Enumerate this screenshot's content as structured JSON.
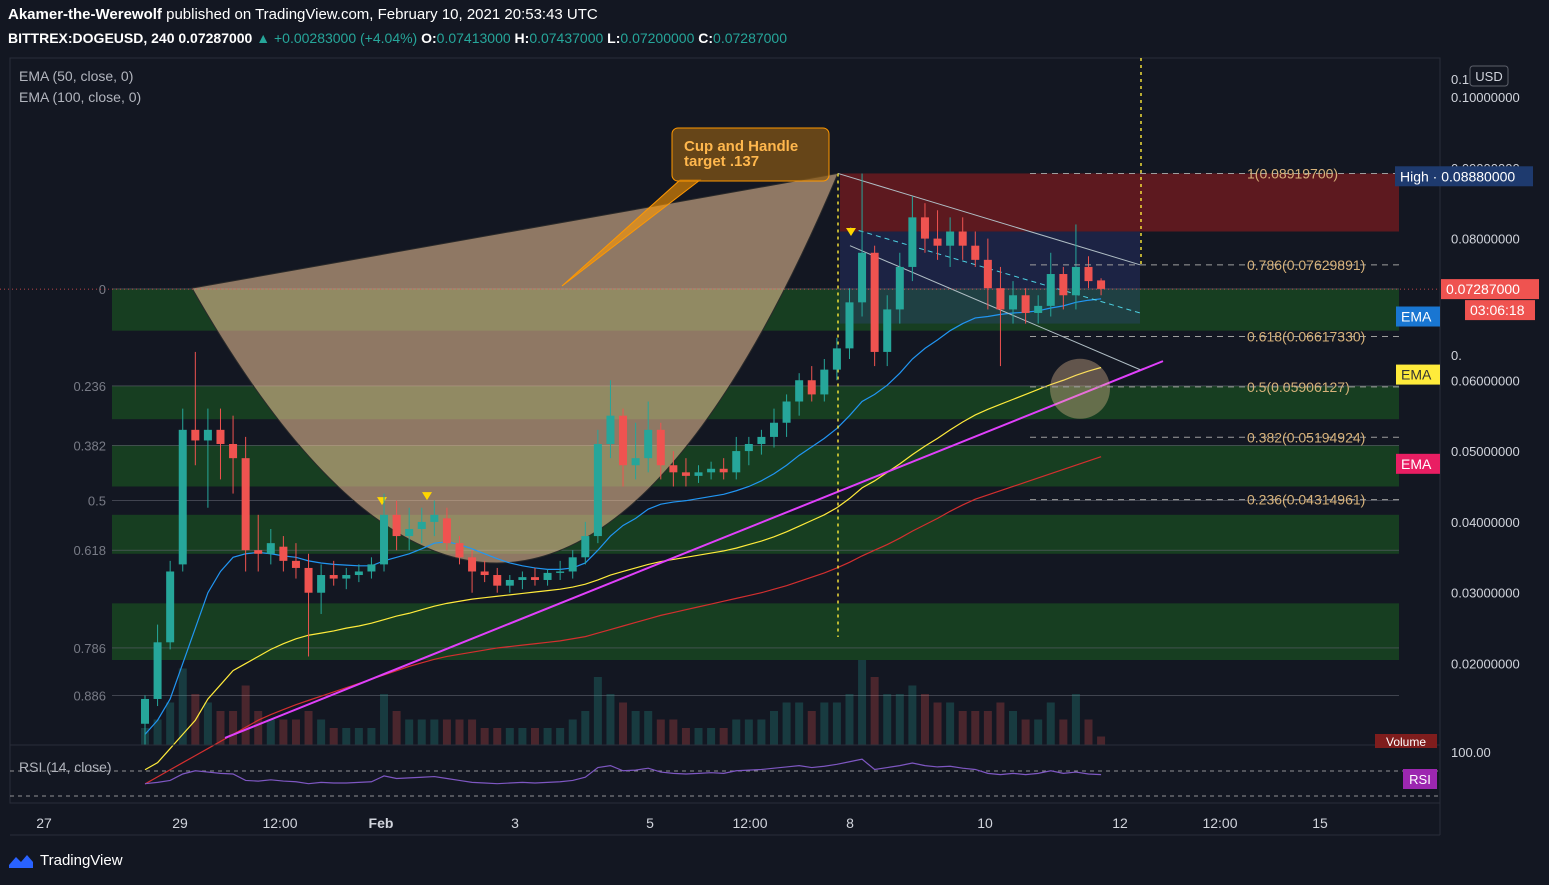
{
  "header": {
    "author": "Akamer-the-Werewolf",
    "published": "published on TradingView.com, February 10, 2021 20:53:43 UTC",
    "symbol": "BITTREX:DOGEUSD, 240",
    "last": "0.07287000",
    "change": "+0.00283000 (+4.04%)",
    "o_label": "O:",
    "o": "0.07413000",
    "h_label": "H:",
    "h": "0.07437000",
    "l_label": "L:",
    "l": "0.07200000",
    "c_label": "C:",
    "c": "0.07287000"
  },
  "indicators": {
    "ema50": "EMA (50, close, 0)",
    "ema100": "EMA (100, close, 0)",
    "rsi": "RSI (14, close)",
    "volume_tag": "Volume",
    "rsi_tag": "RSI",
    "rsi_level": "100.00"
  },
  "footer": {
    "brand": "TradingView"
  },
  "annotation": {
    "line1": "Cup and Handle",
    "line2": "target .137"
  },
  "colors": {
    "bg": "#131722",
    "up": "#26a69a",
    "down": "#ef5350",
    "ema_blue": "#2196f3",
    "ema_yellow": "#ffeb3b",
    "ema_red": "#e91e63",
    "trend": "#e040fb",
    "zone": "#1b5e20",
    "rsi": "#7e57c2"
  },
  "chart_data": {
    "type": "candlestick",
    "currency": "USD",
    "y_axis_ticks": [
      "0.10000000",
      "0.09000000",
      "0.08000000",
      "0.06000000",
      "0.05000000",
      "0.04000000",
      "0.03000000",
      "0.02000000"
    ],
    "y_axis_partial": [
      "0.1",
      "0."
    ],
    "x_axis_ticks": [
      "27",
      "29",
      "12:00",
      "Feb",
      "3",
      "5",
      "12:00",
      "8",
      "10",
      "12",
      "12:00",
      "15"
    ],
    "price_labels": {
      "high": "High  ·  0.08880000",
      "last": "0.07287000",
      "countdown": "03:06:18",
      "ema": "EMA"
    },
    "fib_right": [
      {
        "level": "1",
        "value": "1(0.08919700)",
        "price": 0.089197
      },
      {
        "level": "0.786",
        "value": "0.786(0.07629891)",
        "price": 0.07629891
      },
      {
        "level": "0.618",
        "value": "0.618(0.06617330)",
        "price": 0.0661733
      },
      {
        "level": "0.5",
        "value": "0.5(0.05906127)",
        "price": 0.05906127
      },
      {
        "level": "0.382",
        "value": "0.382(0.05194924)",
        "price": 0.05194924
      },
      {
        "level": "0.236",
        "value": "0.236(0.04314961)",
        "price": 0.04314961
      }
    ],
    "fib_left": [
      {
        "label": "0",
        "price": 0.0729
      },
      {
        "label": "0.236",
        "price": 0.0592
      },
      {
        "label": "0.382",
        "price": 0.0508
      },
      {
        "label": "0.5",
        "price": 0.043
      },
      {
        "label": "0.618",
        "price": 0.036
      },
      {
        "label": "0.786",
        "price": 0.0222
      },
      {
        "label": "0.886",
        "price": 0.0155
      }
    ],
    "y_range": [
      0.0085,
      0.1055
    ],
    "candles": [
      {
        "t": 0,
        "o": 0.0115,
        "h": 0.0155,
        "l": 0.0085,
        "c": 0.015
      },
      {
        "t": 1,
        "o": 0.015,
        "h": 0.0255,
        "l": 0.014,
        "c": 0.023
      },
      {
        "t": 2,
        "o": 0.023,
        "h": 0.0345,
        "l": 0.022,
        "c": 0.033
      },
      {
        "t": 3,
        "o": 0.034,
        "h": 0.056,
        "l": 0.033,
        "c": 0.053
      },
      {
        "t": 4,
        "o": 0.053,
        "h": 0.064,
        "l": 0.048,
        "c": 0.0515
      },
      {
        "t": 5,
        "o": 0.0515,
        "h": 0.056,
        "l": 0.042,
        "c": 0.053
      },
      {
        "t": 6,
        "o": 0.053,
        "h": 0.056,
        "l": 0.046,
        "c": 0.051
      },
      {
        "t": 7,
        "o": 0.051,
        "h": 0.055,
        "l": 0.044,
        "c": 0.049
      },
      {
        "t": 8,
        "o": 0.049,
        "h": 0.052,
        "l": 0.033,
        "c": 0.036
      },
      {
        "t": 9,
        "o": 0.036,
        "h": 0.041,
        "l": 0.033,
        "c": 0.0355
      },
      {
        "t": 10,
        "o": 0.0355,
        "h": 0.039,
        "l": 0.034,
        "c": 0.037
      },
      {
        "t": 11,
        "o": 0.0365,
        "h": 0.038,
        "l": 0.033,
        "c": 0.0345
      },
      {
        "t": 12,
        "o": 0.0345,
        "h": 0.037,
        "l": 0.032,
        "c": 0.0335
      },
      {
        "t": 13,
        "o": 0.0335,
        "h": 0.0355,
        "l": 0.021,
        "c": 0.03
      },
      {
        "t": 14,
        "o": 0.03,
        "h": 0.034,
        "l": 0.027,
        "c": 0.0325
      },
      {
        "t": 15,
        "o": 0.0325,
        "h": 0.0345,
        "l": 0.031,
        "c": 0.032
      },
      {
        "t": 16,
        "o": 0.032,
        "h": 0.0335,
        "l": 0.0305,
        "c": 0.0325
      },
      {
        "t": 17,
        "o": 0.0325,
        "h": 0.034,
        "l": 0.0315,
        "c": 0.033
      },
      {
        "t": 18,
        "o": 0.033,
        "h": 0.035,
        "l": 0.032,
        "c": 0.034
      },
      {
        "t": 19,
        "o": 0.034,
        "h": 0.044,
        "l": 0.033,
        "c": 0.041
      },
      {
        "t": 20,
        "o": 0.041,
        "h": 0.043,
        "l": 0.036,
        "c": 0.038
      },
      {
        "t": 21,
        "o": 0.038,
        "h": 0.042,
        "l": 0.036,
        "c": 0.039
      },
      {
        "t": 22,
        "o": 0.039,
        "h": 0.042,
        "l": 0.037,
        "c": 0.04
      },
      {
        "t": 23,
        "o": 0.04,
        "h": 0.043,
        "l": 0.038,
        "c": 0.041
      },
      {
        "t": 24,
        "o": 0.0405,
        "h": 0.042,
        "l": 0.036,
        "c": 0.037
      },
      {
        "t": 25,
        "o": 0.037,
        "h": 0.038,
        "l": 0.034,
        "c": 0.035
      },
      {
        "t": 26,
        "o": 0.035,
        "h": 0.036,
        "l": 0.03,
        "c": 0.033
      },
      {
        "t": 27,
        "o": 0.033,
        "h": 0.0345,
        "l": 0.0315,
        "c": 0.0325
      },
      {
        "t": 28,
        "o": 0.0325,
        "h": 0.0335,
        "l": 0.03,
        "c": 0.031
      },
      {
        "t": 29,
        "o": 0.031,
        "h": 0.0325,
        "l": 0.03,
        "c": 0.0318
      },
      {
        "t": 30,
        "o": 0.0318,
        "h": 0.033,
        "l": 0.0305,
        "c": 0.0322
      },
      {
        "t": 31,
        "o": 0.0322,
        "h": 0.0335,
        "l": 0.031,
        "c": 0.0318
      },
      {
        "t": 32,
        "o": 0.0318,
        "h": 0.0333,
        "l": 0.031,
        "c": 0.0328
      },
      {
        "t": 33,
        "o": 0.0328,
        "h": 0.0345,
        "l": 0.0318,
        "c": 0.033
      },
      {
        "t": 34,
        "o": 0.033,
        "h": 0.036,
        "l": 0.032,
        "c": 0.035
      },
      {
        "t": 35,
        "o": 0.035,
        "h": 0.04,
        "l": 0.034,
        "c": 0.038
      },
      {
        "t": 36,
        "o": 0.038,
        "h": 0.053,
        "l": 0.037,
        "c": 0.051
      },
      {
        "t": 37,
        "o": 0.051,
        "h": 0.06,
        "l": 0.049,
        "c": 0.055
      },
      {
        "t": 38,
        "o": 0.055,
        "h": 0.056,
        "l": 0.045,
        "c": 0.048
      },
      {
        "t": 39,
        "o": 0.048,
        "h": 0.054,
        "l": 0.046,
        "c": 0.049
      },
      {
        "t": 40,
        "o": 0.049,
        "h": 0.057,
        "l": 0.047,
        "c": 0.053
      },
      {
        "t": 41,
        "o": 0.053,
        "h": 0.054,
        "l": 0.046,
        "c": 0.048
      },
      {
        "t": 42,
        "o": 0.048,
        "h": 0.05,
        "l": 0.045,
        "c": 0.047
      },
      {
        "t": 43,
        "o": 0.047,
        "h": 0.049,
        "l": 0.045,
        "c": 0.0465
      },
      {
        "t": 44,
        "o": 0.0465,
        "h": 0.048,
        "l": 0.0455,
        "c": 0.047
      },
      {
        "t": 45,
        "o": 0.047,
        "h": 0.0485,
        "l": 0.046,
        "c": 0.0475
      },
      {
        "t": 46,
        "o": 0.0475,
        "h": 0.049,
        "l": 0.046,
        "c": 0.047
      },
      {
        "t": 47,
        "o": 0.047,
        "h": 0.052,
        "l": 0.046,
        "c": 0.05
      },
      {
        "t": 48,
        "o": 0.05,
        "h": 0.052,
        "l": 0.048,
        "c": 0.051
      },
      {
        "t": 49,
        "o": 0.051,
        "h": 0.053,
        "l": 0.0495,
        "c": 0.052
      },
      {
        "t": 50,
        "o": 0.052,
        "h": 0.056,
        "l": 0.0505,
        "c": 0.054
      },
      {
        "t": 51,
        "o": 0.054,
        "h": 0.058,
        "l": 0.052,
        "c": 0.057
      },
      {
        "t": 52,
        "o": 0.057,
        "h": 0.061,
        "l": 0.055,
        "c": 0.06
      },
      {
        "t": 53,
        "o": 0.06,
        "h": 0.062,
        "l": 0.057,
        "c": 0.058
      },
      {
        "t": 54,
        "o": 0.058,
        "h": 0.063,
        "l": 0.057,
        "c": 0.0615
      },
      {
        "t": 55,
        "o": 0.0615,
        "h": 0.066,
        "l": 0.06,
        "c": 0.0645
      },
      {
        "t": 56,
        "o": 0.0645,
        "h": 0.073,
        "l": 0.063,
        "c": 0.071
      },
      {
        "t": 57,
        "o": 0.071,
        "h": 0.0892,
        "l": 0.069,
        "c": 0.078
      },
      {
        "t": 58,
        "o": 0.078,
        "h": 0.079,
        "l": 0.062,
        "c": 0.064
      },
      {
        "t": 59,
        "o": 0.064,
        "h": 0.072,
        "l": 0.062,
        "c": 0.07
      },
      {
        "t": 60,
        "o": 0.07,
        "h": 0.078,
        "l": 0.068,
        "c": 0.076
      },
      {
        "t": 61,
        "o": 0.076,
        "h": 0.086,
        "l": 0.074,
        "c": 0.083
      },
      {
        "t": 62,
        "o": 0.083,
        "h": 0.085,
        "l": 0.078,
        "c": 0.08
      },
      {
        "t": 63,
        "o": 0.08,
        "h": 0.084,
        "l": 0.077,
        "c": 0.079
      },
      {
        "t": 64,
        "o": 0.079,
        "h": 0.083,
        "l": 0.076,
        "c": 0.081
      },
      {
        "t": 65,
        "o": 0.081,
        "h": 0.083,
        "l": 0.077,
        "c": 0.079
      },
      {
        "t": 66,
        "o": 0.079,
        "h": 0.081,
        "l": 0.076,
        "c": 0.077
      },
      {
        "t": 67,
        "o": 0.077,
        "h": 0.08,
        "l": 0.07,
        "c": 0.073
      },
      {
        "t": 68,
        "o": 0.073,
        "h": 0.076,
        "l": 0.062,
        "c": 0.07
      },
      {
        "t": 69,
        "o": 0.07,
        "h": 0.074,
        "l": 0.068,
        "c": 0.072
      },
      {
        "t": 70,
        "o": 0.072,
        "h": 0.073,
        "l": 0.068,
        "c": 0.0695
      },
      {
        "t": 71,
        "o": 0.0695,
        "h": 0.072,
        "l": 0.068,
        "c": 0.0705
      },
      {
        "t": 72,
        "o": 0.0705,
        "h": 0.078,
        "l": 0.069,
        "c": 0.075
      },
      {
        "t": 73,
        "o": 0.075,
        "h": 0.076,
        "l": 0.07,
        "c": 0.072
      },
      {
        "t": 74,
        "o": 0.072,
        "h": 0.082,
        "l": 0.07,
        "c": 0.076
      },
      {
        "t": 75,
        "o": 0.076,
        "h": 0.0775,
        "l": 0.073,
        "c": 0.074
      },
      {
        "t": 76,
        "o": 0.0741,
        "h": 0.0744,
        "l": 0.072,
        "c": 0.0729
      }
    ],
    "ema20": [
      0.01,
      0.012,
      0.015,
      0.02,
      0.025,
      0.03,
      0.033,
      0.035,
      0.0355,
      0.0357,
      0.0355,
      0.0352,
      0.035,
      0.0345,
      0.0342,
      0.034,
      0.0339,
      0.0338,
      0.0338,
      0.0345,
      0.035,
      0.0355,
      0.0362,
      0.037,
      0.0372,
      0.0368,
      0.0362,
      0.0355,
      0.0348,
      0.0342,
      0.0338,
      0.0335,
      0.0333,
      0.0333,
      0.0335,
      0.0342,
      0.036,
      0.038,
      0.0395,
      0.0405,
      0.0418,
      0.0425,
      0.0428,
      0.043,
      0.0433,
      0.0436,
      0.0439,
      0.0444,
      0.045,
      0.0458,
      0.0468,
      0.048,
      0.0494,
      0.0506,
      0.0518,
      0.0532,
      0.055,
      0.057,
      0.058,
      0.0593,
      0.061,
      0.063,
      0.0645,
      0.0657,
      0.067,
      0.068,
      0.0688,
      0.069,
      0.0693,
      0.0695,
      0.0696,
      0.0698,
      0.0702,
      0.0705,
      0.071,
      0.0713,
      0.0715
    ],
    "ema50": [
      0.005,
      0.006,
      0.008,
      0.01,
      0.012,
      0.015,
      0.017,
      0.019,
      0.02,
      0.021,
      0.022,
      0.0228,
      0.0235,
      0.024,
      0.0243,
      0.0246,
      0.025,
      0.0253,
      0.0257,
      0.0262,
      0.0267,
      0.0271,
      0.0276,
      0.0281,
      0.0285,
      0.0288,
      0.0291,
      0.0293,
      0.0295,
      0.0297,
      0.0299,
      0.0301,
      0.0303,
      0.0305,
      0.0308,
      0.0312,
      0.0318,
      0.0325,
      0.033,
      0.0335,
      0.034,
      0.0344,
      0.0347,
      0.035,
      0.0353,
      0.0356,
      0.0359,
      0.0363,
      0.0368,
      0.0373,
      0.0379,
      0.0386,
      0.0394,
      0.0402,
      0.041,
      0.042,
      0.0433,
      0.0448,
      0.0458,
      0.047,
      0.0482,
      0.0495,
      0.0507,
      0.0518,
      0.053,
      0.0541,
      0.0551,
      0.0559,
      0.0566,
      0.0573,
      0.058,
      0.0587,
      0.0594,
      0.06,
      0.0607,
      0.0613,
      0.0618
    ],
    "ema100": [
      0.003,
      0.004,
      0.005,
      0.006,
      0.007,
      0.008,
      0.009,
      0.01,
      0.011,
      0.012,
      0.0128,
      0.0135,
      0.0142,
      0.0148,
      0.0154,
      0.016,
      0.0166,
      0.0172,
      0.0178,
      0.0184,
      0.019,
      0.0196,
      0.0201,
      0.0206,
      0.021,
      0.0213,
      0.0216,
      0.0219,
      0.0222,
      0.0224,
      0.0226,
      0.0228,
      0.023,
      0.0232,
      0.0235,
      0.0238,
      0.0243,
      0.0248,
      0.0253,
      0.0258,
      0.0263,
      0.0268,
      0.0272,
      0.0276,
      0.028,
      0.0284,
      0.0288,
      0.0292,
      0.0296,
      0.03,
      0.0305,
      0.031,
      0.0316,
      0.0322,
      0.0328,
      0.0335,
      0.0343,
      0.0352,
      0.036,
      0.0368,
      0.0377,
      0.0387,
      0.0396,
      0.0405,
      0.0415,
      0.0424,
      0.0432,
      0.0438,
      0.0444,
      0.045,
      0.0456,
      0.0462,
      0.0468,
      0.0474,
      0.048,
      0.0486,
      0.0492
    ],
    "volume": [
      0.2,
      0.3,
      0.5,
      0.9,
      0.6,
      0.5,
      0.4,
      0.4,
      0.7,
      0.4,
      0.3,
      0.3,
      0.3,
      0.4,
      0.3,
      0.2,
      0.2,
      0.2,
      0.2,
      0.6,
      0.4,
      0.3,
      0.3,
      0.3,
      0.3,
      0.3,
      0.3,
      0.2,
      0.2,
      0.2,
      0.2,
      0.2,
      0.2,
      0.2,
      0.3,
      0.4,
      0.8,
      0.6,
      0.5,
      0.4,
      0.4,
      0.3,
      0.3,
      0.2,
      0.2,
      0.2,
      0.2,
      0.3,
      0.3,
      0.3,
      0.4,
      0.5,
      0.5,
      0.4,
      0.5,
      0.5,
      0.6,
      1.0,
      0.8,
      0.6,
      0.6,
      0.7,
      0.6,
      0.5,
      0.5,
      0.4,
      0.4,
      0.4,
      0.5,
      0.4,
      0.3,
      0.3,
      0.5,
      0.3,
      0.6,
      0.3,
      0.1
    ],
    "rsi": [
      40,
      42,
      45,
      55,
      60,
      58,
      56,
      55,
      45,
      44,
      46,
      44,
      43,
      40,
      42,
      41,
      41,
      42,
      43,
      52,
      48,
      49,
      50,
      51,
      48,
      45,
      42,
      41,
      40,
      41,
      42,
      41,
      42,
      43,
      45,
      50,
      65,
      68,
      60,
      61,
      64,
      58,
      56,
      55,
      56,
      57,
      56,
      60,
      61,
      62,
      64,
      66,
      68,
      65,
      67,
      70,
      74,
      78,
      62,
      65,
      68,
      72,
      68,
      66,
      67,
      64,
      62,
      56,
      54,
      56,
      54,
      56,
      60,
      56,
      58,
      55,
      54
    ]
  }
}
